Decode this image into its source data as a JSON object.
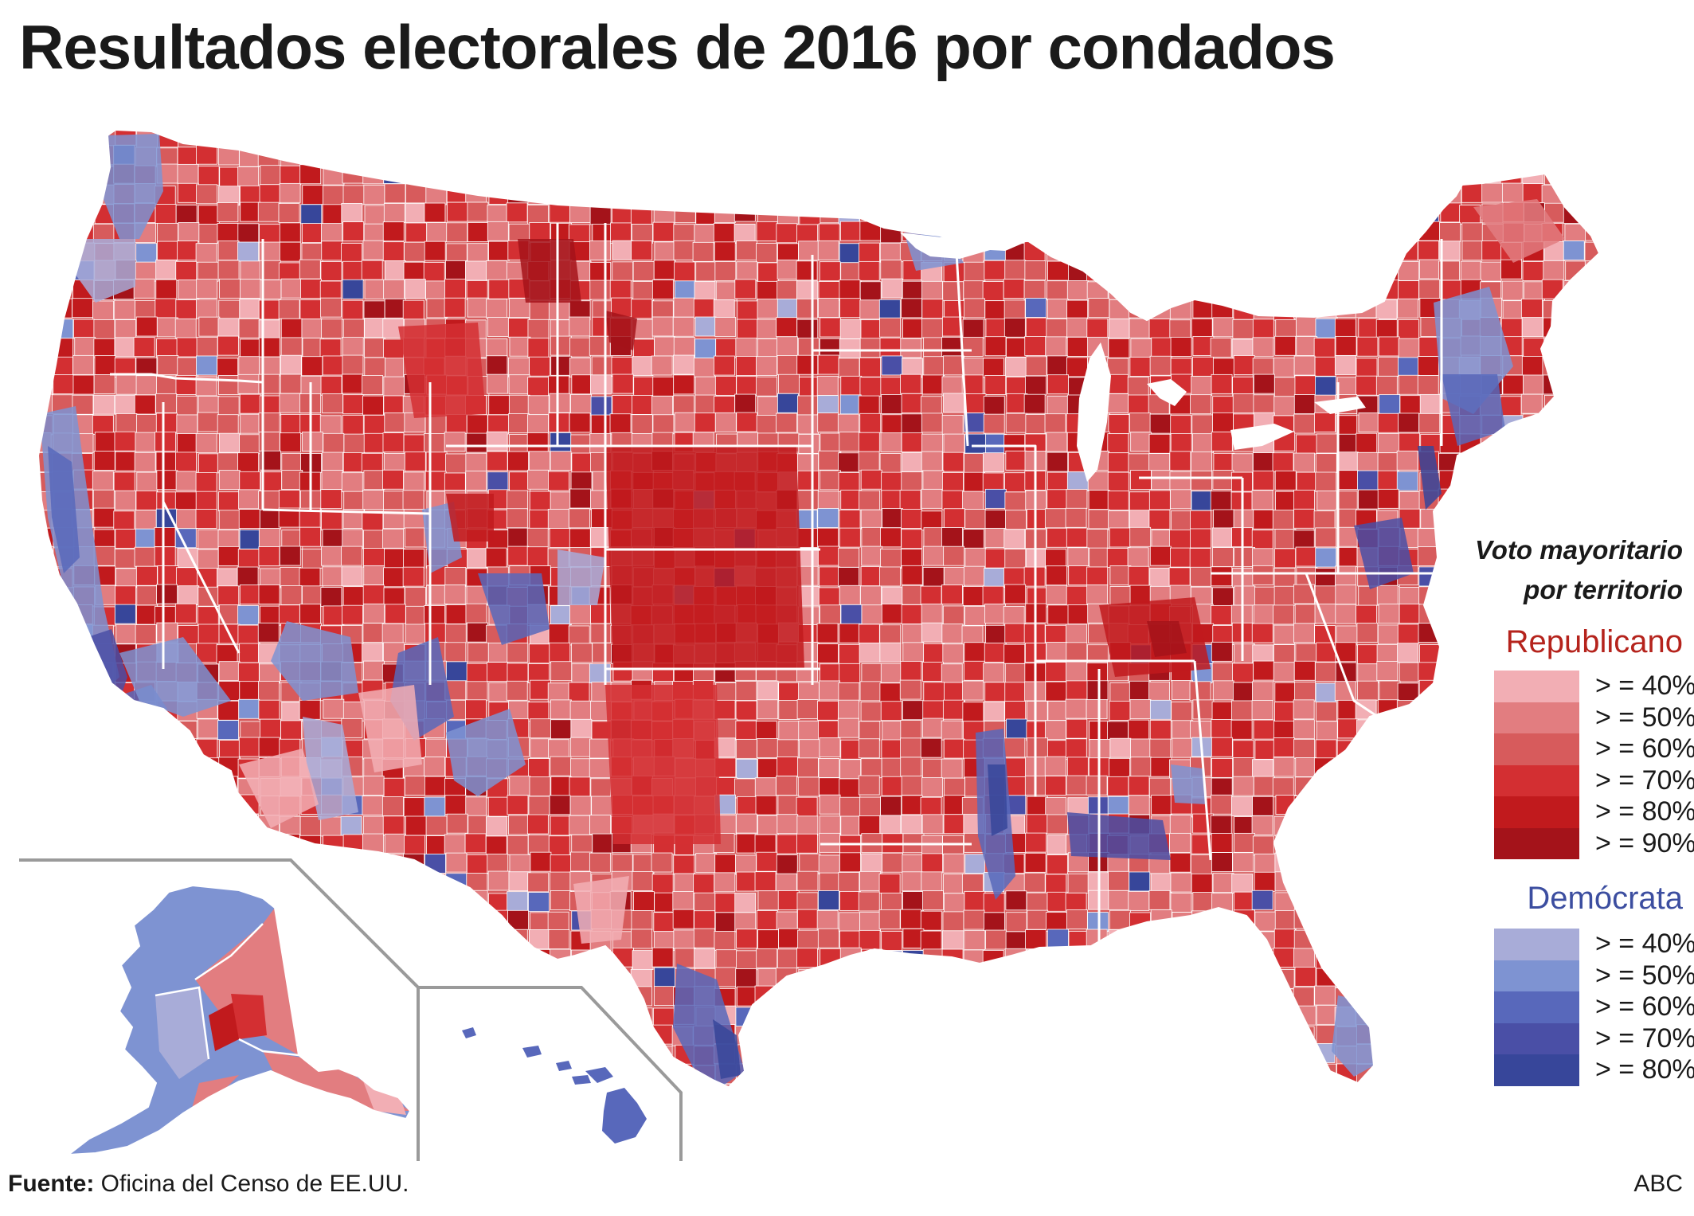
{
  "title": "Resultados electorales de 2016 por condados",
  "legend": {
    "heading_line1": "Voto mayoritario",
    "heading_line2": "por territorio",
    "republican": {
      "title": "Republicano",
      "title_color": "#b5231c",
      "bins": [
        {
          "label": "> = 40%",
          "color": "#f2aeb4"
        },
        {
          "label": "> = 50%",
          "color": "#e27d80"
        },
        {
          "label": "> = 60%",
          "color": "#d75b5c"
        },
        {
          "label": "> = 70%",
          "color": "#d32f32"
        },
        {
          "label": "> = 80%",
          "color": "#c11a1d"
        },
        {
          "label": "> = 90%",
          "color": "#a4131a"
        }
      ]
    },
    "democrat": {
      "title": "Demócrata",
      "title_color": "#3c4ea0",
      "bins": [
        {
          "label": "> = 40%",
          "color": "#a8acd8"
        },
        {
          "label": "> = 50%",
          "color": "#7e93d2"
        },
        {
          "label": "> = 60%",
          "color": "#5868bb"
        },
        {
          "label": "> = 70%",
          "color": "#4a4fa6"
        },
        {
          "label": "> = 80%",
          "color": "#37469a"
        }
      ]
    }
  },
  "footer": {
    "source_label": "Fuente:",
    "source_text": " Oficina del Censo de EE.UU.",
    "credit": "ABC"
  },
  "map": {
    "regions": [
      "Estados Unidos contiguos",
      "Alaska",
      "Hawái"
    ]
  }
}
